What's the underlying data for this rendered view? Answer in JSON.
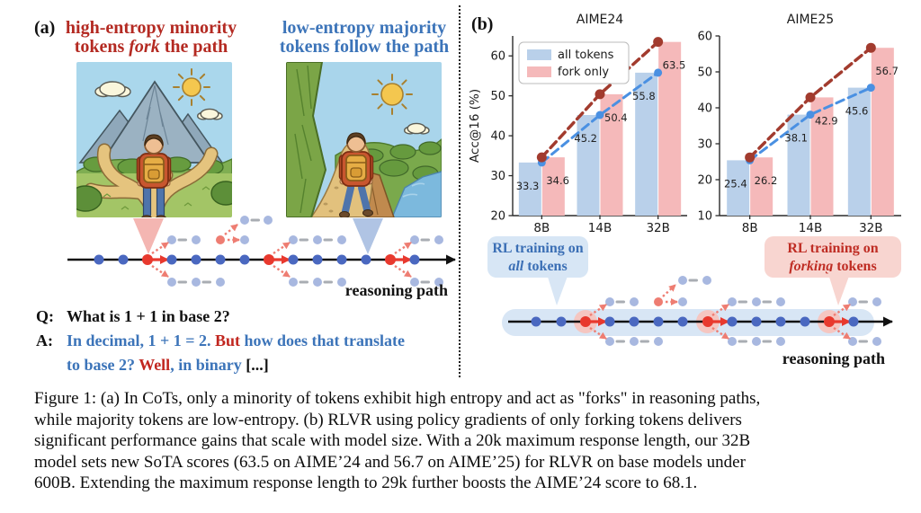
{
  "panel_a": {
    "label": "(a)",
    "red_header": {
      "line1": "high-entropy minority",
      "line2_pre": "tokens ",
      "line2_italic": "fork",
      "line2_post": " the path"
    },
    "blue_header": {
      "line1": "low-entropy majority",
      "line2": "tokens follow the path"
    },
    "left_image_alt": "hiker-at-forking-paths-illustration",
    "right_image_alt": "hiker-following-single-path-illustration",
    "reasoning_path_label": "reasoning path",
    "qa": {
      "q_label": "Q:",
      "q_text": "What is 1 + 1 in base 2?",
      "a_label": "A:",
      "a_seg1": "In decimal, 1 + 1 = 2. ",
      "a_seg2": "But",
      "a_seg3": " how does that translate",
      "a_line2_seg1": "to base 2? ",
      "a_line2_seg2": "Well",
      "a_line2_seg3": ", in binary ",
      "a_line2_seg4": "[...]"
    }
  },
  "panel_b": {
    "label": "(b)",
    "bubble_all": {
      "line1": "RL training on",
      "italic": "all",
      "rest": " tokens"
    },
    "bubble_fork": {
      "line1": "RL training on",
      "italic": "forking",
      "rest": " tokens"
    },
    "reasoning_path_label": "reasoning path"
  },
  "chart_data": [
    {
      "type": "bar",
      "title": "AIME24",
      "ylabel": "Acc@16 (%)",
      "categories": [
        "8B",
        "14B",
        "32B"
      ],
      "series": [
        {
          "name": "all tokens",
          "values": [
            33.3,
            45.2,
            55.8
          ],
          "bar_color": "#b9d0ea",
          "line_color": "#4a90e2"
        },
        {
          "name": "fork only",
          "values": [
            34.6,
            50.4,
            63.5
          ],
          "bar_color": "#f5b9ba",
          "line_color": "#a23b2e"
        }
      ],
      "ylim": [
        20,
        65
      ],
      "yticks": [
        20,
        30,
        40,
        50,
        60
      ],
      "legend": true,
      "legend_position": "upper left",
      "grid": false
    },
    {
      "type": "bar",
      "title": "AIME25",
      "ylabel": "",
      "categories": [
        "8B",
        "14B",
        "32B"
      ],
      "series": [
        {
          "name": "all tokens",
          "values": [
            25.4,
            38.1,
            45.6
          ],
          "bar_color": "#b9d0ea",
          "line_color": "#4a90e2"
        },
        {
          "name": "fork only",
          "values": [
            26.2,
            42.9,
            56.7
          ],
          "bar_color": "#f5b9ba",
          "line_color": "#a23b2e"
        }
      ],
      "ylim": [
        10,
        60
      ],
      "yticks": [
        10,
        20,
        30,
        40,
        50,
        60
      ],
      "legend": false,
      "grid": false
    }
  ],
  "caption": {
    "lines": [
      "Figure 1: (a) In CoTs, only a minority of tokens exhibit high entropy and act as \"forks\" in reasoning paths,",
      "while majority tokens are low-entropy. (b) RLVR using policy gradients of only forking tokens delivers",
      "significant performance gains that scale with model size. With a 20k maximum response length, our 32B",
      "model sets new SoTA scores (63.5 on AIME’24 and 56.7 on AIME’25) for RLVR on base models under",
      "600B. Extending the maximum response length to 29k further boosts the AIME’24 score to 68.1."
    ]
  },
  "colors": {
    "accent_red_text": "#b42a22",
    "accent_blue_text": "#3c74b9",
    "path_dot_blue": "#4a68c0",
    "branch_dot_blue": "#a8b8e0",
    "fork_dot_red": "#e8392e",
    "faded_red": "#ee7d72",
    "gray_dash": "#a9adb3",
    "band_blue": "#d8e6f5",
    "halo_pink": "#f5c6c1",
    "bar_blue": "#b9d0ea",
    "bar_pink": "#f5b9ba"
  }
}
